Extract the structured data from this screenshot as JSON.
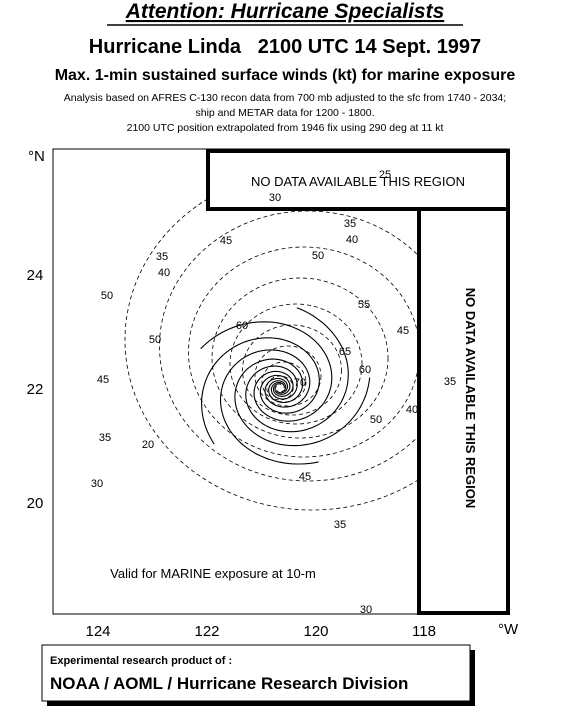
{
  "header": {
    "attention": "Attention: Hurricane Specialists",
    "title": "Hurricane Linda   2100 UTC 14 Sept. 1997",
    "subtitle": "Max. 1-min sustained surface winds (kt) for marine exposure",
    "notes": [
      "Analysis based on AFRES C-130 recon data from 700 mb adjusted to the sfc from 1740 - 2034;",
      "ship and METAR data for 1200 - 1800.",
      "2100 UTC position extrapolated from 1946 fix using 290 deg at 11 kt"
    ]
  },
  "map": {
    "y_unit": "°N",
    "x_unit": "°W",
    "x_ticks": [
      124,
      122,
      120,
      118
    ],
    "y_ticks": [
      24,
      22,
      20
    ],
    "no_data_labels": [
      "NO DATA AVAILABLE THIS REGION",
      "NO DATA AVAILABLE THIS REGION"
    ],
    "valid_note": "Valid for MARINE exposure at 10-m",
    "contour_labels": [
      25,
      30,
      35,
      40,
      45,
      50,
      35,
      40,
      50,
      55,
      60,
      50,
      45,
      65,
      60,
      45,
      70,
      35,
      40,
      50,
      35,
      20,
      45,
      30,
      35,
      30
    ]
  },
  "footer": {
    "line1": "Experimental research product of :",
    "line2": "NOAA / AOML / Hurricane Research Division"
  }
}
